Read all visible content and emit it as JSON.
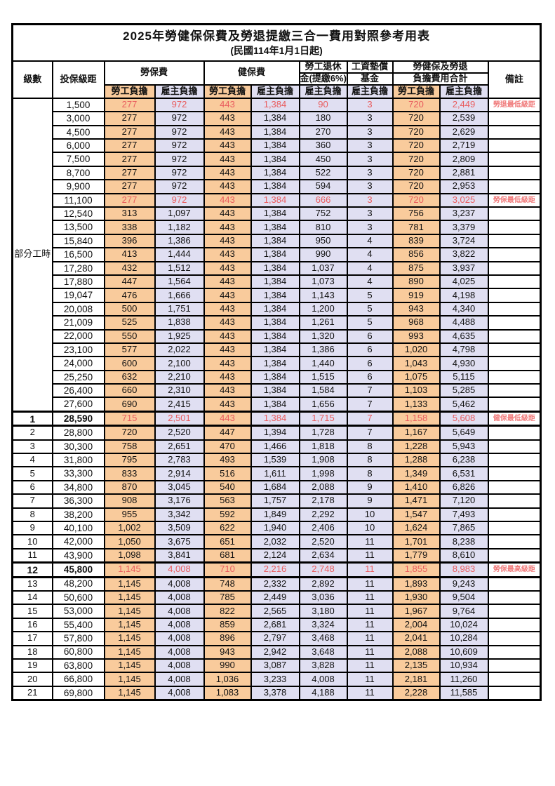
{
  "title": "2025年勞健保保費及勞退提繳三合一費用對照參考用表",
  "subtitle": "(民國114年1月1日起)",
  "part_time_label": "部分工時",
  "colors": {
    "employee_share_bg": "#F9CB9C",
    "employer_share_bg": "#E0DFF2",
    "highlight_text": "#E95C5E",
    "remark_text": "#F07C7C",
    "border": "#000000",
    "background": "#FFFFFF"
  },
  "header": {
    "level": "級數",
    "bracket": "投保級距",
    "labor_ins": "勞保費",
    "health_ins": "健保費",
    "pension_line1": "勞工退休",
    "pension_line2": "金(提繳6%)",
    "wage_fund_line1": "工資墊償",
    "wage_fund_line2": "基金",
    "total_line1": "勞健保及勞退",
    "total_line2": "負擔費用合計",
    "remarks": "備註",
    "employee": "勞工負擔",
    "employer": "雇主負擔"
  },
  "rows": [
    {
      "level": "",
      "bracket": "1,500",
      "values": [
        "277",
        "972",
        "443",
        "1,384",
        "90",
        "3",
        "720",
        "2,449"
      ],
      "remark": "勞退最低級距",
      "highlight": true,
      "heavy": false,
      "bold": false
    },
    {
      "level": "",
      "bracket": "3,000",
      "values": [
        "277",
        "972",
        "443",
        "1,384",
        "180",
        "3",
        "720",
        "2,539"
      ],
      "remark": "",
      "highlight": false,
      "heavy": false,
      "bold": false
    },
    {
      "level": "",
      "bracket": "4,500",
      "values": [
        "277",
        "972",
        "443",
        "1,384",
        "270",
        "3",
        "720",
        "2,629"
      ],
      "remark": "",
      "highlight": false,
      "heavy": false,
      "bold": false
    },
    {
      "level": "",
      "bracket": "6,000",
      "values": [
        "277",
        "972",
        "443",
        "1,384",
        "360",
        "3",
        "720",
        "2,719"
      ],
      "remark": "",
      "highlight": false,
      "heavy": false,
      "bold": false
    },
    {
      "level": "",
      "bracket": "7,500",
      "values": [
        "277",
        "972",
        "443",
        "1,384",
        "450",
        "3",
        "720",
        "2,809"
      ],
      "remark": "",
      "highlight": false,
      "heavy": false,
      "bold": false
    },
    {
      "level": "",
      "bracket": "8,700",
      "values": [
        "277",
        "972",
        "443",
        "1,384",
        "522",
        "3",
        "720",
        "2,881"
      ],
      "remark": "",
      "highlight": false,
      "heavy": false,
      "bold": false
    },
    {
      "level": "",
      "bracket": "9,900",
      "values": [
        "277",
        "972",
        "443",
        "1,384",
        "594",
        "3",
        "720",
        "2,953"
      ],
      "remark": "",
      "highlight": false,
      "heavy": false,
      "bold": false
    },
    {
      "level": "",
      "bracket": "11,100",
      "values": [
        "277",
        "972",
        "443",
        "1,384",
        "666",
        "3",
        "720",
        "3,025"
      ],
      "remark": "勞保最低級距",
      "highlight": true,
      "heavy": false,
      "bold": false
    },
    {
      "level": "",
      "bracket": "12,540",
      "values": [
        "313",
        "1,097",
        "443",
        "1,384",
        "752",
        "3",
        "756",
        "3,237"
      ],
      "remark": "",
      "highlight": false,
      "heavy": false,
      "bold": false
    },
    {
      "level": "",
      "bracket": "13,500",
      "values": [
        "338",
        "1,182",
        "443",
        "1,384",
        "810",
        "3",
        "781",
        "3,379"
      ],
      "remark": "",
      "highlight": false,
      "heavy": false,
      "bold": false
    },
    {
      "level": "",
      "bracket": "15,840",
      "values": [
        "396",
        "1,386",
        "443",
        "1,384",
        "950",
        "4",
        "839",
        "3,724"
      ],
      "remark": "",
      "highlight": false,
      "heavy": false,
      "bold": false
    },
    {
      "level": "",
      "bracket": "16,500",
      "values": [
        "413",
        "1,444",
        "443",
        "1,384",
        "990",
        "4",
        "856",
        "3,822"
      ],
      "remark": "",
      "highlight": false,
      "heavy": false,
      "bold": false
    },
    {
      "level": "",
      "bracket": "17,280",
      "values": [
        "432",
        "1,512",
        "443",
        "1,384",
        "1,037",
        "4",
        "875",
        "3,937"
      ],
      "remark": "",
      "highlight": false,
      "heavy": false,
      "bold": false
    },
    {
      "level": "",
      "bracket": "17,880",
      "values": [
        "447",
        "1,564",
        "443",
        "1,384",
        "1,073",
        "4",
        "890",
        "4,025"
      ],
      "remark": "",
      "highlight": false,
      "heavy": false,
      "bold": false
    },
    {
      "level": "",
      "bracket": "19,047",
      "values": [
        "476",
        "1,666",
        "443",
        "1,384",
        "1,143",
        "5",
        "919",
        "4,198"
      ],
      "remark": "",
      "highlight": false,
      "heavy": false,
      "bold": false
    },
    {
      "level": "",
      "bracket": "20,008",
      "values": [
        "500",
        "1,751",
        "443",
        "1,384",
        "1,200",
        "5",
        "943",
        "4,340"
      ],
      "remark": "",
      "highlight": false,
      "heavy": false,
      "bold": false
    },
    {
      "level": "",
      "bracket": "21,009",
      "values": [
        "525",
        "1,838",
        "443",
        "1,384",
        "1,261",
        "5",
        "968",
        "4,488"
      ],
      "remark": "",
      "highlight": false,
      "heavy": false,
      "bold": false
    },
    {
      "level": "",
      "bracket": "22,000",
      "values": [
        "550",
        "1,925",
        "443",
        "1,384",
        "1,320",
        "6",
        "993",
        "4,635"
      ],
      "remark": "",
      "highlight": false,
      "heavy": false,
      "bold": false
    },
    {
      "level": "",
      "bracket": "23,100",
      "values": [
        "577",
        "2,022",
        "443",
        "1,384",
        "1,386",
        "6",
        "1,020",
        "4,798"
      ],
      "remark": "",
      "highlight": false,
      "heavy": false,
      "bold": false
    },
    {
      "level": "",
      "bracket": "24,000",
      "values": [
        "600",
        "2,100",
        "443",
        "1,384",
        "1,440",
        "6",
        "1,043",
        "4,930"
      ],
      "remark": "",
      "highlight": false,
      "heavy": false,
      "bold": false
    },
    {
      "level": "",
      "bracket": "25,250",
      "values": [
        "632",
        "2,210",
        "443",
        "1,384",
        "1,515",
        "6",
        "1,075",
        "5,115"
      ],
      "remark": "",
      "highlight": false,
      "heavy": false,
      "bold": false
    },
    {
      "level": "",
      "bracket": "26,400",
      "values": [
        "660",
        "2,310",
        "443",
        "1,384",
        "1,584",
        "7",
        "1,103",
        "5,285"
      ],
      "remark": "",
      "highlight": false,
      "heavy": false,
      "bold": false
    },
    {
      "level": "",
      "bracket": "27,600",
      "values": [
        "690",
        "2,415",
        "443",
        "1,384",
        "1,656",
        "7",
        "1,133",
        "5,462"
      ],
      "remark": "",
      "highlight": false,
      "heavy": false,
      "bold": false
    },
    {
      "level": "1",
      "bracket": "28,590",
      "values": [
        "715",
        "2,501",
        "443",
        "1,384",
        "1,715",
        "7",
        "1,158",
        "5,608"
      ],
      "remark": "健保最低級距",
      "highlight": true,
      "heavy": true,
      "bold": true
    },
    {
      "level": "2",
      "bracket": "28,800",
      "values": [
        "720",
        "2,520",
        "447",
        "1,394",
        "1,728",
        "7",
        "1,167",
        "5,649"
      ],
      "remark": "",
      "highlight": false,
      "heavy": false,
      "bold": false
    },
    {
      "level": "3",
      "bracket": "30,300",
      "values": [
        "758",
        "2,651",
        "470",
        "1,466",
        "1,818",
        "8",
        "1,228",
        "5,943"
      ],
      "remark": "",
      "highlight": false,
      "heavy": false,
      "bold": false
    },
    {
      "level": "4",
      "bracket": "31,800",
      "values": [
        "795",
        "2,783",
        "493",
        "1,539",
        "1,908",
        "8",
        "1,288",
        "6,238"
      ],
      "remark": "",
      "highlight": false,
      "heavy": false,
      "bold": false
    },
    {
      "level": "5",
      "bracket": "33,300",
      "values": [
        "833",
        "2,914",
        "516",
        "1,611",
        "1,998",
        "8",
        "1,349",
        "6,531"
      ],
      "remark": "",
      "highlight": false,
      "heavy": false,
      "bold": false
    },
    {
      "level": "6",
      "bracket": "34,800",
      "values": [
        "870",
        "3,045",
        "540",
        "1,684",
        "2,088",
        "9",
        "1,410",
        "6,826"
      ],
      "remark": "",
      "highlight": false,
      "heavy": false,
      "bold": false
    },
    {
      "level": "7",
      "bracket": "36,300",
      "values": [
        "908",
        "3,176",
        "563",
        "1,757",
        "2,178",
        "9",
        "1,471",
        "7,120"
      ],
      "remark": "",
      "highlight": false,
      "heavy": false,
      "bold": false
    },
    {
      "level": "8",
      "bracket": "38,200",
      "values": [
        "955",
        "3,342",
        "592",
        "1,849",
        "2,292",
        "10",
        "1,547",
        "7,493"
      ],
      "remark": "",
      "highlight": false,
      "heavy": false,
      "bold": false
    },
    {
      "level": "9",
      "bracket": "40,100",
      "values": [
        "1,002",
        "3,509",
        "622",
        "1,940",
        "2,406",
        "10",
        "1,624",
        "7,865"
      ],
      "remark": "",
      "highlight": false,
      "heavy": false,
      "bold": false
    },
    {
      "level": "10",
      "bracket": "42,000",
      "values": [
        "1,050",
        "3,675",
        "651",
        "2,032",
        "2,520",
        "11",
        "1,701",
        "8,238"
      ],
      "remark": "",
      "highlight": false,
      "heavy": false,
      "bold": false
    },
    {
      "level": "11",
      "bracket": "43,900",
      "values": [
        "1,098",
        "3,841",
        "681",
        "2,124",
        "2,634",
        "11",
        "1,779",
        "8,610"
      ],
      "remark": "",
      "highlight": false,
      "heavy": false,
      "bold": false
    },
    {
      "level": "12",
      "bracket": "45,800",
      "values": [
        "1,145",
        "4,008",
        "710",
        "2,216",
        "2,748",
        "11",
        "1,855",
        "8,983"
      ],
      "remark": "勞保最高級距",
      "highlight": true,
      "heavy": true,
      "bold": true
    },
    {
      "level": "13",
      "bracket": "48,200",
      "values": [
        "1,145",
        "4,008",
        "748",
        "2,332",
        "2,892",
        "11",
        "1,893",
        "9,243"
      ],
      "remark": "",
      "highlight": false,
      "heavy": false,
      "bold": false
    },
    {
      "level": "14",
      "bracket": "50,600",
      "values": [
        "1,145",
        "4,008",
        "785",
        "2,449",
        "3,036",
        "11",
        "1,930",
        "9,504"
      ],
      "remark": "",
      "highlight": false,
      "heavy": false,
      "bold": false
    },
    {
      "level": "15",
      "bracket": "53,000",
      "values": [
        "1,145",
        "4,008",
        "822",
        "2,565",
        "3,180",
        "11",
        "1,967",
        "9,764"
      ],
      "remark": "",
      "highlight": false,
      "heavy": false,
      "bold": false
    },
    {
      "level": "16",
      "bracket": "55,400",
      "values": [
        "1,145",
        "4,008",
        "859",
        "2,681",
        "3,324",
        "11",
        "2,004",
        "10,024"
      ],
      "remark": "",
      "highlight": false,
      "heavy": false,
      "bold": false
    },
    {
      "level": "17",
      "bracket": "57,800",
      "values": [
        "1,145",
        "4,008",
        "896",
        "2,797",
        "3,468",
        "11",
        "2,041",
        "10,284"
      ],
      "remark": "",
      "highlight": false,
      "heavy": false,
      "bold": false
    },
    {
      "level": "18",
      "bracket": "60,800",
      "values": [
        "1,145",
        "4,008",
        "943",
        "2,942",
        "3,648",
        "11",
        "2,088",
        "10,609"
      ],
      "remark": "",
      "highlight": false,
      "heavy": false,
      "bold": false
    },
    {
      "level": "19",
      "bracket": "63,800",
      "values": [
        "1,145",
        "4,008",
        "990",
        "3,087",
        "3,828",
        "11",
        "2,135",
        "10,934"
      ],
      "remark": "",
      "highlight": false,
      "heavy": false,
      "bold": false
    },
    {
      "level": "20",
      "bracket": "66,800",
      "values": [
        "1,145",
        "4,008",
        "1,036",
        "3,233",
        "4,008",
        "11",
        "2,181",
        "11,260"
      ],
      "remark": "",
      "highlight": false,
      "heavy": false,
      "bold": false
    },
    {
      "level": "21",
      "bracket": "69,800",
      "values": [
        "1,145",
        "4,008",
        "1,083",
        "3,378",
        "4,188",
        "11",
        "2,228",
        "11,585"
      ],
      "remark": "",
      "highlight": false,
      "heavy": false,
      "bold": false
    }
  ]
}
